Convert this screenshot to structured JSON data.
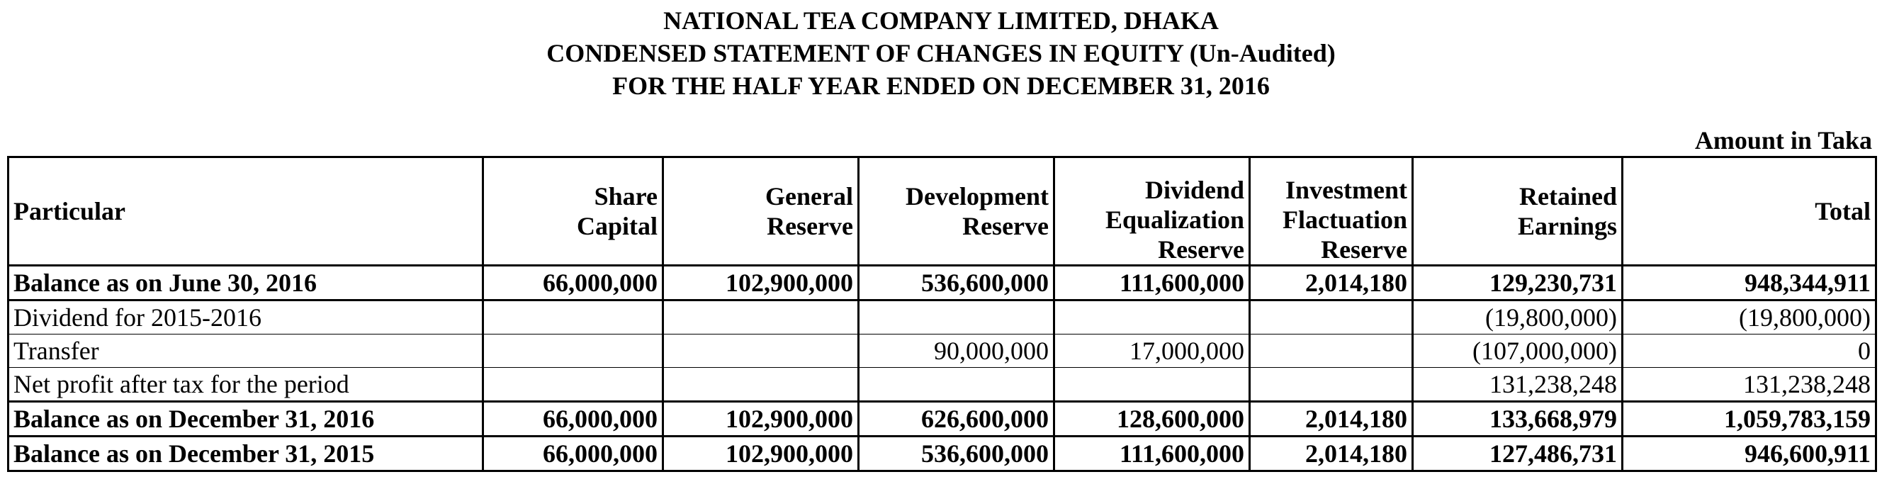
{
  "header": {
    "company": "NATIONAL TEA COMPANY LIMITED, DHAKA",
    "statement": "CONDENSED STATEMENT OF CHANGES IN EQUITY (Un-Audited)",
    "period": "FOR THE HALF YEAR ENDED ON DECEMBER 31, 2016",
    "amount_note": "Amount in Taka"
  },
  "table": {
    "columns": [
      {
        "key": "particular",
        "lines": [
          "Particular"
        ]
      },
      {
        "key": "share_capital",
        "lines": [
          "Share",
          "Capital"
        ]
      },
      {
        "key": "general_reserve",
        "lines": [
          "General",
          "Reserve"
        ]
      },
      {
        "key": "development_reserve",
        "lines": [
          "Development",
          "Reserve"
        ]
      },
      {
        "key": "dividend_equalization_reserve",
        "lines": [
          "Dividend",
          "Equalization",
          "Reserve"
        ]
      },
      {
        "key": "investment_fluctuation_reserve",
        "lines": [
          "Investment",
          "Flactuation",
          "Reserve"
        ]
      },
      {
        "key": "retained_earnings",
        "lines": [
          "Retained",
          "Earnings"
        ]
      },
      {
        "key": "total",
        "lines": [
          "Total"
        ]
      }
    ],
    "rows": [
      {
        "bold": true,
        "cells": [
          "Balance as on June 30, 2016",
          "66,000,000",
          "102,900,000",
          "536,600,000",
          "111,600,000",
          "2,014,180",
          "129,230,731",
          "948,344,911"
        ]
      },
      {
        "bold": false,
        "cells": [
          "Dividend for 2015-2016",
          "",
          "",
          "",
          "",
          "",
          "(19,800,000)",
          "(19,800,000)"
        ]
      },
      {
        "bold": false,
        "cells": [
          "Transfer",
          "",
          "",
          "90,000,000",
          "17,000,000",
          "",
          "(107,000,000)",
          "0"
        ]
      },
      {
        "bold": false,
        "cells": [
          "Net profit after tax for the period",
          "",
          "",
          "",
          "",
          "",
          "131,238,248",
          "131,238,248"
        ]
      },
      {
        "bold": true,
        "cells": [
          "Balance as on December 31, 2016",
          "66,000,000",
          "102,900,000",
          "626,600,000",
          "128,600,000",
          "2,014,180",
          "133,668,979",
          "1,059,783,159"
        ]
      },
      {
        "bold": true,
        "cells": [
          "Balance as on December 31, 2015",
          "66,000,000",
          "102,900,000",
          "536,600,000",
          "111,600,000",
          "2,014,180",
          "127,486,731",
          "946,600,911"
        ]
      }
    ]
  }
}
